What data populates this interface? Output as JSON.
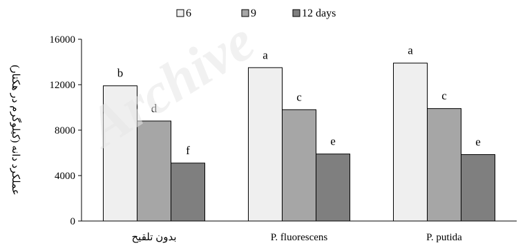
{
  "chart_data": {
    "type": "bar",
    "title": "",
    "xlabel": "",
    "ylabel": "عملکرد دانه (کیلوگرم در هکتار)",
    "ylim": [
      0,
      16000
    ],
    "yticks": [
      0,
      4000,
      8000,
      12000,
      16000
    ],
    "grid": false,
    "legend": "top-center",
    "categories": [
      "بدون تلقیح",
      "P. fluorescens",
      "P. putida"
    ],
    "series": [
      {
        "name": "6",
        "values": [
          11900,
          13500,
          13900
        ],
        "labels": [
          "b",
          "a",
          "a"
        ],
        "color": "#efefef"
      },
      {
        "name": "9",
        "values": [
          8800,
          9800,
          9900
        ],
        "labels": [
          "d",
          "c",
          "c"
        ],
        "color": "#a6a6a6"
      },
      {
        "name": "12 days",
        "values": [
          5100,
          5900,
          5850
        ],
        "labels": [
          "f",
          "e",
          "e"
        ],
        "color": "#7f7f7f"
      }
    ]
  },
  "watermark": "Archive"
}
